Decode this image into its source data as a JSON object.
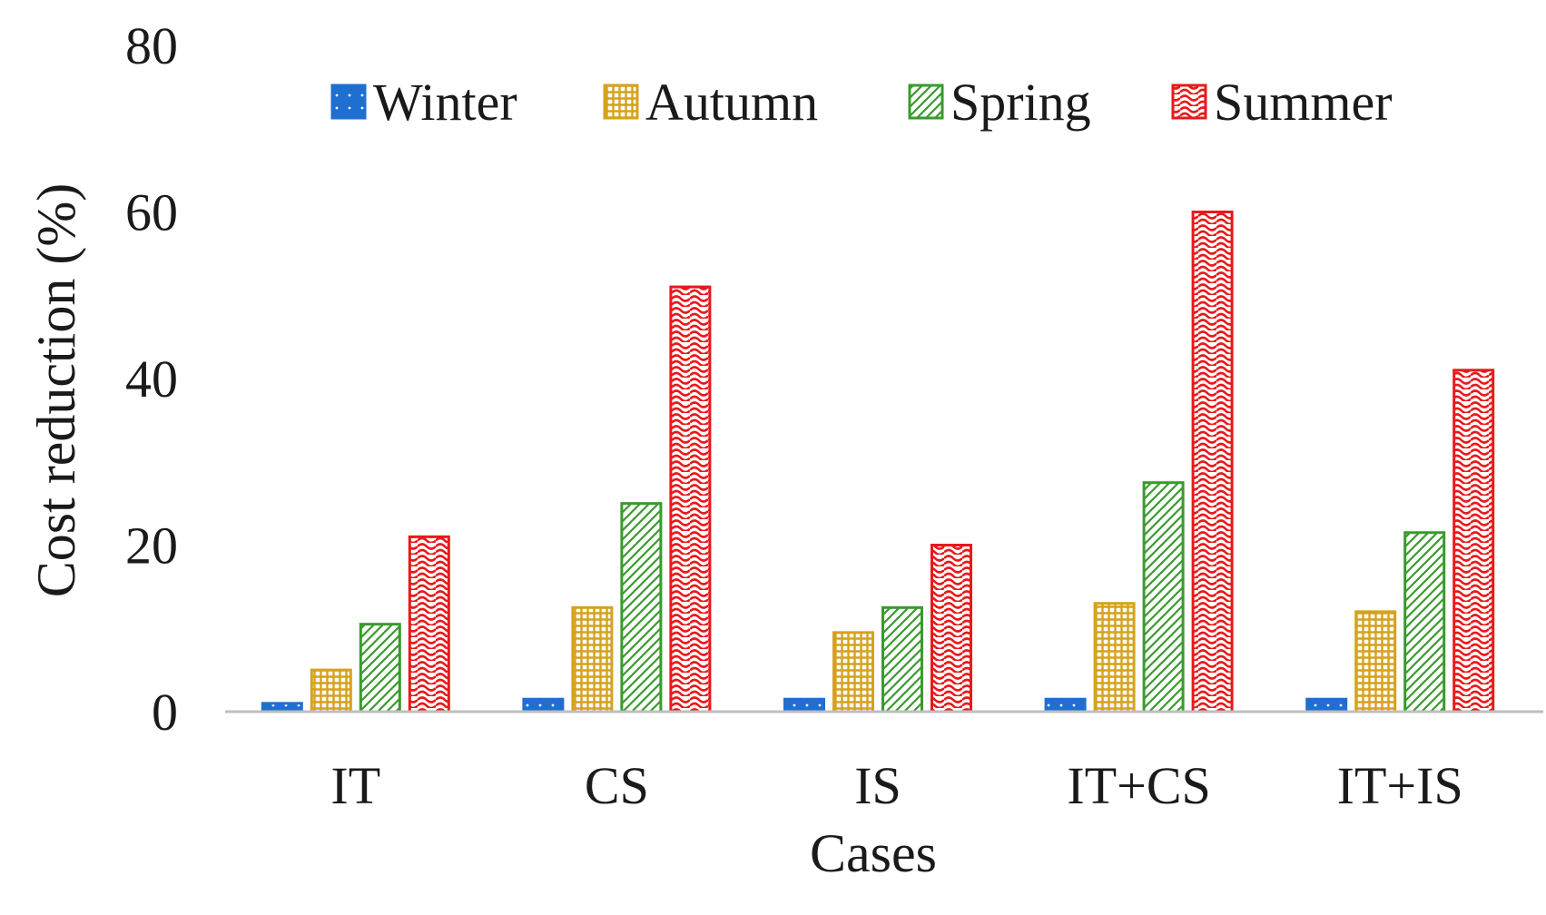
{
  "chart_data": {
    "type": "bar",
    "title": "",
    "xlabel": "Cases",
    "ylabel": "Cost reduction (%)",
    "ylim": [
      0,
      80
    ],
    "yticks": [
      0,
      20,
      40,
      60,
      80
    ],
    "grid": false,
    "legend_position": "top",
    "categories": [
      "IT",
      "CS",
      "IS",
      "IT+CS",
      "IT+IS"
    ],
    "series": [
      {
        "name": "Winter",
        "color": "#1f6fd1",
        "pattern": "dot",
        "values": [
          1,
          1.5,
          1.5,
          1.5,
          1.5
        ]
      },
      {
        "name": "Autumn",
        "color": "#d6a21e",
        "pattern": "grid",
        "values": [
          5,
          12.5,
          9.5,
          13,
          12
        ]
      },
      {
        "name": "Spring",
        "color": "#3a9a2e",
        "pattern": "diagonal",
        "values": [
          10.5,
          25,
          12.5,
          27.5,
          21.5
        ]
      },
      {
        "name": "Summer",
        "color": "#e8191b",
        "pattern": "wave",
        "values": [
          21,
          51,
          20,
          60,
          41
        ]
      }
    ]
  }
}
